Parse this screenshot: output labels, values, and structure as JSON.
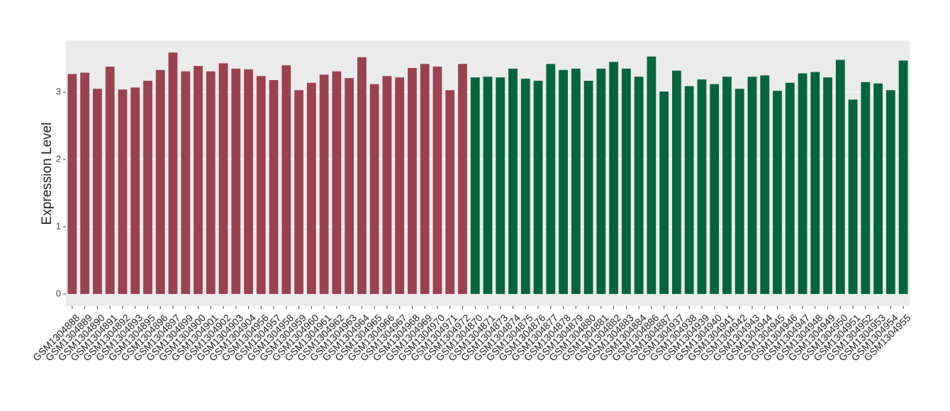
{
  "chart_data": {
    "type": "bar",
    "y_label": "Expression Level",
    "categories": [
      "GSM1304888",
      "GSM1304889",
      "GSM1304890",
      "GSM1304891",
      "GSM1304892",
      "GSM1304893",
      "GSM1304895",
      "GSM1304896",
      "GSM1304897",
      "GSM1304899",
      "GSM1304900",
      "GSM1304901",
      "GSM1304902",
      "GSM1304903",
      "GSM1304904",
      "GSM1304956",
      "GSM1304957",
      "GSM1304958",
      "GSM1304959",
      "GSM1304960",
      "GSM1304961",
      "GSM1304962",
      "GSM1304963",
      "GSM1304964",
      "GSM1304965",
      "GSM1304966",
      "GSM1304967",
      "GSM1304968",
      "GSM1304969",
      "GSM1304970",
      "GSM1304971",
      "GSM1304972",
      "GSM1304870",
      "GSM1304871",
      "GSM1304873",
      "GSM1304874",
      "GSM1304875",
      "GSM1304876",
      "GSM1304877",
      "GSM1304878",
      "GSM1304879",
      "GSM1304880",
      "GSM1304881",
      "GSM1304882",
      "GSM1304883",
      "GSM1304884",
      "GSM1304886",
      "GSM1304887",
      "GSM1304937",
      "GSM1304938",
      "GSM1304939",
      "GSM1304940",
      "GSM1304941",
      "GSM1304942",
      "GSM1304943",
      "GSM1304944",
      "GSM1304945",
      "GSM1304946",
      "GSM1304947",
      "GSM1304948",
      "GSM1304949",
      "GSM1304950",
      "GSM1304951",
      "GSM1304952",
      "GSM1304953",
      "GSM1304954",
      "GSM1304955"
    ],
    "values": [
      3.27,
      3.29,
      3.05,
      3.38,
      3.04,
      3.07,
      3.17,
      3.33,
      3.59,
      3.31,
      3.39,
      3.31,
      3.43,
      3.35,
      3.34,
      3.24,
      3.18,
      3.4,
      3.03,
      3.14,
      3.26,
      3.31,
      3.21,
      3.52,
      3.12,
      3.24,
      3.22,
      3.36,
      3.42,
      3.38,
      3.03,
      3.42,
      3.22,
      3.23,
      3.22,
      3.35,
      3.2,
      3.17,
      3.42,
      3.33,
      3.35,
      3.17,
      3.35,
      3.45,
      3.35,
      3.23,
      3.53,
      3.01,
      3.32,
      3.09,
      3.19,
      3.12,
      3.23,
      3.05,
      3.23,
      3.25,
      3.02,
      3.14,
      3.28,
      3.3,
      3.22,
      3.48,
      2.89,
      3.15,
      3.13,
      3.03,
      3.47
    ],
    "colors": [
      "#9a4250",
      "#9a4250",
      "#9a4250",
      "#9a4250",
      "#9a4250",
      "#9a4250",
      "#9a4250",
      "#9a4250",
      "#9a4250",
      "#9a4250",
      "#9a4250",
      "#9a4250",
      "#9a4250",
      "#9a4250",
      "#9a4250",
      "#9a4250",
      "#9a4250",
      "#9a4250",
      "#9a4250",
      "#9a4250",
      "#9a4250",
      "#9a4250",
      "#9a4250",
      "#9a4250",
      "#9a4250",
      "#9a4250",
      "#9a4250",
      "#9a4250",
      "#9a4250",
      "#9a4250",
      "#9a4250",
      "#9a4250",
      "#03653e",
      "#03653e",
      "#03653e",
      "#03653e",
      "#03653e",
      "#03653e",
      "#03653e",
      "#03653e",
      "#03653e",
      "#03653e",
      "#03653e",
      "#03653e",
      "#03653e",
      "#03653e",
      "#03653e",
      "#03653e",
      "#03653e",
      "#03653e",
      "#03653e",
      "#03653e",
      "#03653e",
      "#03653e",
      "#03653e",
      "#03653e",
      "#03653e",
      "#03653e",
      "#03653e",
      "#03653e",
      "#03653e",
      "#03653e",
      "#03653e",
      "#03653e",
      "#03653e",
      "#03653e",
      "#03653e"
    ],
    "ylim": [
      -0.18,
      3.77
    ],
    "yticks": [
      0,
      1,
      2,
      3
    ],
    "grid": true
  }
}
